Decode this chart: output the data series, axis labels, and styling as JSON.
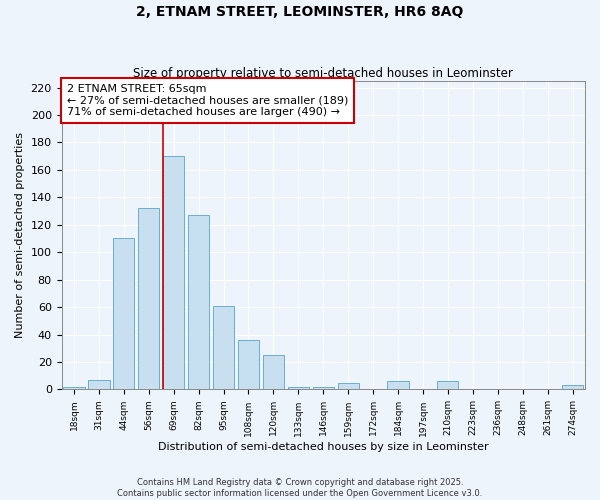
{
  "title": "2, ETNAM STREET, LEOMINSTER, HR6 8AQ",
  "subtitle": "Size of property relative to semi-detached houses in Leominster",
  "xlabel": "Distribution of semi-detached houses by size in Leominster",
  "ylabel": "Number of semi-detached properties",
  "bar_labels": [
    "18sqm",
    "31sqm",
    "44sqm",
    "56sqm",
    "69sqm",
    "82sqm",
    "95sqm",
    "108sqm",
    "120sqm",
    "133sqm",
    "146sqm",
    "159sqm",
    "172sqm",
    "184sqm",
    "197sqm",
    "210sqm",
    "223sqm",
    "236sqm",
    "248sqm",
    "261sqm",
    "274sqm"
  ],
  "bar_values": [
    2,
    7,
    110,
    132,
    170,
    127,
    61,
    36,
    25,
    2,
    2,
    5,
    0,
    6,
    0,
    6,
    0,
    0,
    0,
    0,
    3
  ],
  "bar_color": "#c8dff0",
  "bar_edge_color": "#6baed6",
  "annotation_title": "2 ETNAM STREET: 65sqm",
  "annotation_line1": "← 27% of semi-detached houses are smaller (189)",
  "annotation_line2": "71% of semi-detached houses are larger (490) →",
  "annotation_box_color": "#ffffff",
  "annotation_box_edge": "#cc0000",
  "line_color": "#cc0000",
  "line_index": 3.57,
  "ylim": [
    0,
    225
  ],
  "yticks": [
    0,
    20,
    40,
    60,
    80,
    100,
    120,
    140,
    160,
    180,
    200,
    220
  ],
  "footer_line1": "Contains HM Land Registry data © Crown copyright and database right 2025.",
  "footer_line2": "Contains public sector information licensed under the Open Government Licence v3.0.",
  "background_color": "#eef4fb",
  "grid_color": "#ffffff"
}
